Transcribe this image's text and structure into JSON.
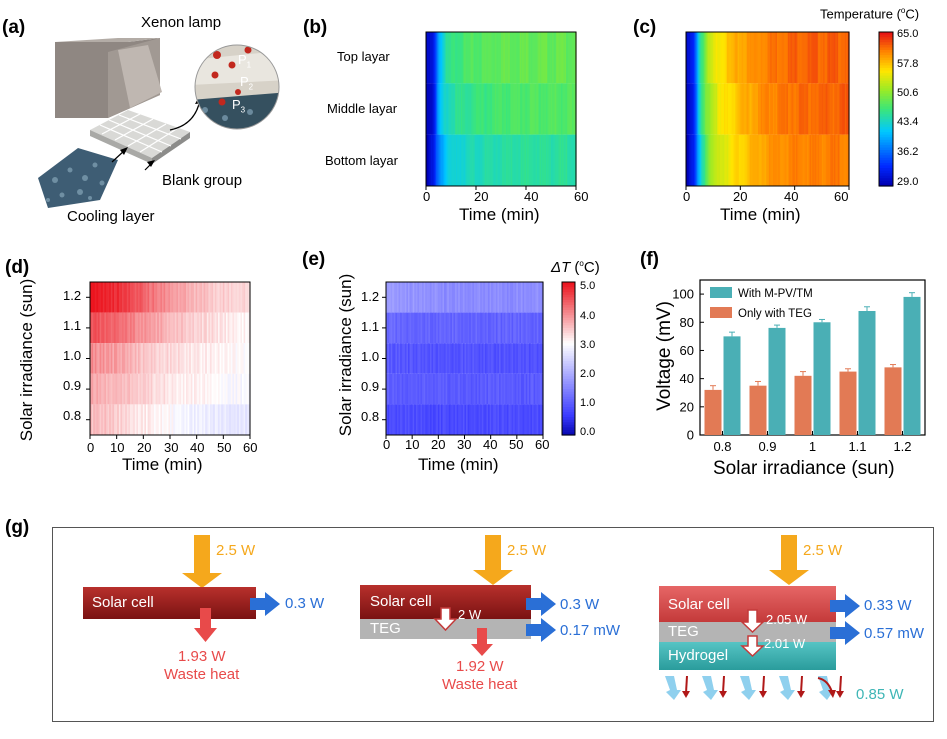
{
  "panels": {
    "a": "(a)",
    "b": "(b)",
    "c": "(c)",
    "d": "(d)",
    "e": "(e)",
    "f": "(f)",
    "g": "(g)"
  },
  "panel_a": {
    "lamp_label": "Xenon  lamp",
    "blank_label": "Blank group",
    "cooling_label": "Cooling layer",
    "p1": "P",
    "p1_sub": "1",
    "p2": "P",
    "p2_sub": "2",
    "p3": "P",
    "p3_sub": "3"
  },
  "panel_b": {
    "rows": [
      "Top layar",
      "Middle layar",
      "Bottom layar"
    ],
    "xlabel": "Time (min)",
    "xticks": [
      "0",
      "20",
      "40",
      "60"
    ]
  },
  "panel_c": {
    "xlabel": "Time (min)",
    "xticks": [
      "0",
      "20",
      "40",
      "60"
    ],
    "colorbar_title": "Temperature (",
    "colorbar_unit_sup": "o",
    "colorbar_unit_end": "C)",
    "colorbar_ticks": [
      "65.0",
      "57.8",
      "50.6",
      "43.4",
      "36.2",
      "29.0"
    ]
  },
  "panel_d": {
    "ylabel": "Solar irradiance (sun)",
    "xlabel": "Time (min)",
    "yticks": [
      "1.2",
      "1.1",
      "1.0",
      "0.9",
      "0.8"
    ],
    "xticks": [
      "0",
      "10",
      "20",
      "30",
      "40",
      "50",
      "60"
    ]
  },
  "panel_e": {
    "ylabel": "Solar irradiance (sun)",
    "xlabel": "Time (min)",
    "yticks": [
      "1.2",
      "1.1",
      "1.0",
      "0.9",
      "0.8"
    ],
    "xticks": [
      "0",
      "10",
      "20",
      "30",
      "40",
      "50",
      "60"
    ],
    "colorbar_delta": "ΔT",
    "colorbar_open": " (",
    "colorbar_unit_sup": "o",
    "colorbar_unit_end": "C)",
    "colorbar_ticks": [
      "5.0",
      "4.0",
      "3.0",
      "2.0",
      "1.0",
      "0.0"
    ]
  },
  "panel_g": {
    "input1": "2.5 W",
    "cell1": "Solar cell",
    "out1": "0.3 W",
    "heat1_value": "1.93 W",
    "heat1_label": "Waste heat",
    "input2": "2.5 W",
    "cell2": "Solar cell",
    "teg2": "TEG",
    "flow2": "2 W",
    "out2a": "0.3 W",
    "out2b": "0.17 mW",
    "heat2_value": "1.92 W",
    "heat2_label": "Waste heat",
    "input3": "2.5 W",
    "cell3": "Solar cell",
    "teg3": "TEG",
    "hydro3": "Hydrogel",
    "flow3a": "2.05 W",
    "flow3b": "2.01 W",
    "out3a": "0.33 W",
    "out3b": "0.57 mW",
    "evap3": "0.85 W"
  },
  "colors": {
    "arrow_orange": "#f5a81c",
    "arrow_blue": "#2a6fd6",
    "heat_red": "#e84a4a",
    "solar_red": "#9e1a1a",
    "teg_gray": "#b4b4b4",
    "hydrogel_teal": "#3fb6b6",
    "bar_teal": "#4aafb5",
    "bar_orange": "#e27a55"
  },
  "chart_data": [
    {
      "type": "heatmap",
      "panel": "b",
      "rows": [
        "Top layar",
        "Middle layar",
        "Bottom layar"
      ],
      "xlabel": "Time (min)",
      "xlim": [
        0,
        60
      ],
      "colorscale": "Temperature (oC)",
      "clim": [
        29.0,
        65.0
      ],
      "approx_temperature_profile": {
        "time_min": [
          0,
          3,
          5,
          8,
          12,
          20,
          30,
          40,
          60
        ],
        "Top layar": [
          29.5,
          31,
          40,
          45,
          47,
          48,
          49,
          49,
          49
        ],
        "Middle layar": [
          29.5,
          31,
          40,
          44,
          45.5,
          46.5,
          47.5,
          48,
          48
        ],
        "Bottom layar": [
          29.5,
          31,
          38,
          42,
          43.5,
          44.5,
          45,
          45.5,
          45.5
        ]
      }
    },
    {
      "type": "heatmap",
      "panel": "c",
      "rows": [
        "Top layar",
        "Middle layar",
        "Bottom layar"
      ],
      "xlabel": "Time (min)",
      "xlim": [
        0,
        60
      ],
      "colorscale": "Temperature (oC)",
      "clim": [
        29.0,
        65.0
      ],
      "approx_temperature_profile": {
        "time_min": [
          0,
          3,
          5,
          8,
          12,
          20,
          30,
          40,
          60
        ],
        "Top layar": [
          29.5,
          33,
          45,
          52,
          56,
          59,
          61,
          62,
          62
        ],
        "Middle layar": [
          29.5,
          33,
          44,
          51,
          55,
          58,
          60.5,
          61.5,
          62
        ],
        "Bottom layar": [
          29.5,
          32,
          42,
          50,
          54,
          57,
          59.5,
          60.5,
          61
        ]
      }
    },
    {
      "type": "heatmap",
      "panel": "d",
      "ylabel": "Solar irradiance (sun)",
      "xlabel": "Time (min)",
      "rows": [
        1.2,
        1.1,
        1.0,
        0.9,
        0.8
      ],
      "xlim": [
        0,
        60
      ],
      "colorscale": "ΔT (oC)",
      "clim": [
        0.0,
        5.0
      ],
      "approx_deltaT_profile": {
        "time_min": [
          0,
          10,
          20,
          30,
          40,
          50,
          60
        ],
        "1.2": [
          5.0,
          4.8,
          4.3,
          3.9,
          3.6,
          3.4,
          3.3
        ],
        "1.1": [
          4.5,
          4.3,
          3.9,
          3.6,
          3.4,
          3.2,
          3.1
        ],
        "1.0": [
          4.0,
          3.8,
          3.5,
          3.3,
          3.2,
          3.1,
          3.0
        ],
        "0.9": [
          3.8,
          3.6,
          3.4,
          3.2,
          3.1,
          3.0,
          2.9
        ],
        "0.8": [
          3.6,
          3.4,
          3.2,
          3.0,
          2.8,
          2.7,
          2.7
        ]
      }
    },
    {
      "type": "heatmap",
      "panel": "e",
      "ylabel": "Solar irradiance (sun)",
      "xlabel": "Time (min)",
      "rows": [
        1.2,
        1.1,
        1.0,
        0.9,
        0.8
      ],
      "xlim": [
        0,
        60
      ],
      "colorscale": "ΔT (oC)",
      "clim": [
        0.0,
        5.0
      ],
      "approx_deltaT_profile": {
        "time_min": [
          0,
          10,
          20,
          30,
          40,
          50,
          60
        ],
        "1.2": [
          1.8,
          1.7,
          1.6,
          1.6,
          1.6,
          1.6,
          1.6
        ],
        "1.1": [
          1.2,
          1.1,
          1.1,
          1.1,
          1.1,
          1.1,
          1.1
        ],
        "1.0": [
          1.0,
          0.9,
          0.9,
          0.9,
          0.9,
          0.9,
          0.9
        ],
        "0.9": [
          1.1,
          1.0,
          1.0,
          1.0,
          1.0,
          1.0,
          1.0
        ],
        "0.8": [
          0.8,
          0.8,
          0.8,
          0.8,
          0.8,
          0.8,
          0.8
        ]
      }
    },
    {
      "type": "bar",
      "panel": "f",
      "categories": [
        "0.8",
        "0.9",
        "1",
        "1.1",
        "1.2"
      ],
      "series": [
        {
          "name": "With M-PV/TM",
          "values": [
            70,
            76,
            80,
            88,
            98
          ],
          "errors": [
            3,
            2,
            2,
            3,
            3
          ]
        },
        {
          "name": "Only with TEG",
          "values": [
            32,
            35,
            42,
            45,
            48
          ],
          "errors": [
            3,
            3,
            3,
            2,
            2
          ]
        }
      ],
      "xlabel": "Solar irradiance (sun)",
      "ylabel": "Voltage (mV)",
      "ylim": [
        0,
        110
      ],
      "yticks": [
        "0",
        "20",
        "40",
        "60",
        "80",
        "100"
      ],
      "legend_position": "top-left"
    }
  ]
}
